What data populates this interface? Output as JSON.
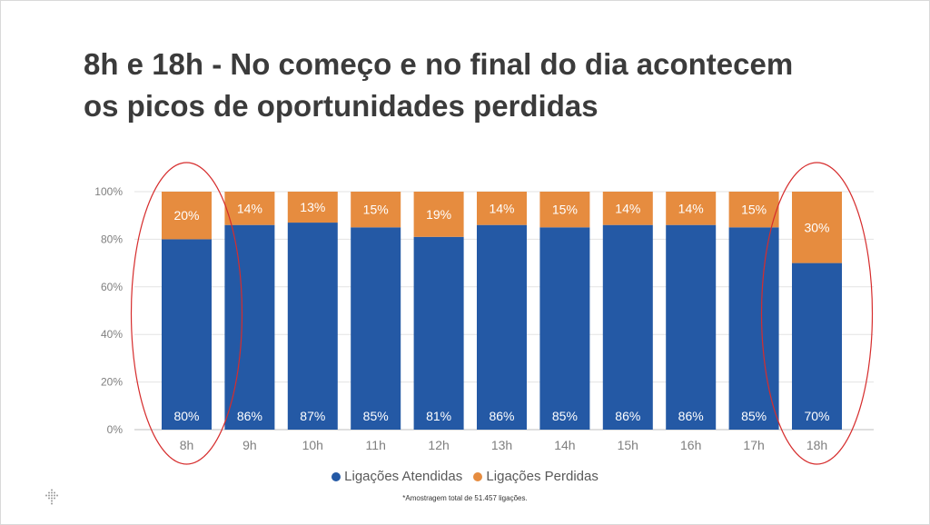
{
  "title": {
    "line1": "8h e 18h - No começo e no final do dia acontecem",
    "line2": "os picos de oportunidades perdidas"
  },
  "chart_data": {
    "type": "bar",
    "stacked": true,
    "percent": true,
    "categories": [
      "8h",
      "9h",
      "10h",
      "11h",
      "12h",
      "13h",
      "14h",
      "15h",
      "16h",
      "17h",
      "18h"
    ],
    "series": [
      {
        "name": "Ligações Atendidas",
        "color": "#2459a5",
        "values": [
          80,
          86,
          87,
          85,
          81,
          86,
          85,
          86,
          86,
          85,
          70
        ]
      },
      {
        "name": "Ligações Perdidas",
        "color": "#e68c3f",
        "values": [
          20,
          14,
          13,
          15,
          19,
          14,
          15,
          14,
          14,
          15,
          30
        ]
      }
    ],
    "yticks": [
      "0%",
      "20%",
      "40%",
      "60%",
      "80%",
      "100%"
    ],
    "ylim": [
      0,
      100
    ],
    "highlighted_categories": [
      "8h",
      "18h"
    ],
    "highlight_color": "#d62d2d",
    "legend_position": "bottom"
  },
  "legend": {
    "atendidas": "Ligações Atendidas",
    "perdidas": "Ligações Perdidas"
  },
  "footnote": "*Amostragem total de 51.457 ligações."
}
